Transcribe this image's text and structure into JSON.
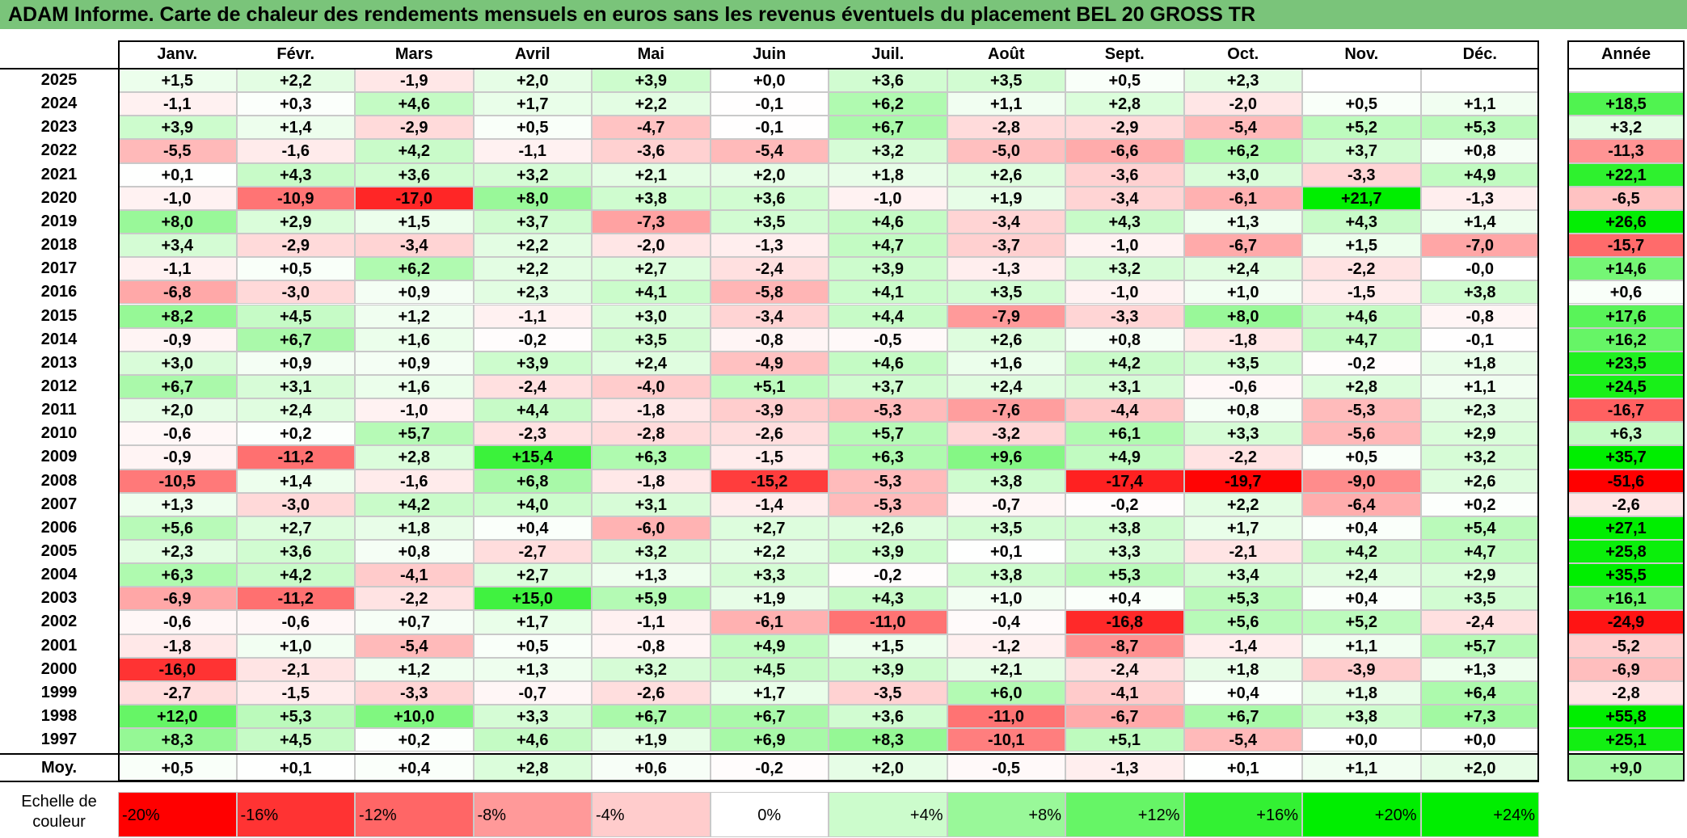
{
  "title": "ADAM Informe. Carte de chaleur des rendements mensuels en euros sans les revenus éventuels du placement BEL 20 GROSS TR",
  "chart_data": {
    "type": "heatmap",
    "title": "ADAM Informe. Carte de chaleur des rendements mensuels en euros sans les revenus éventuels du placement BEL 20 GROSS TR",
    "columns": [
      "Janv.",
      "Févr.",
      "Mars",
      "Avril",
      "Mai",
      "Juin",
      "Juil.",
      "Août",
      "Sept.",
      "Oct.",
      "Nov.",
      "Déc."
    ],
    "year_column": "Année",
    "rows": [
      {
        "year": "2025",
        "values": [
          "+1,5",
          "+2,2",
          "-1,9",
          "+2,0",
          "+3,9",
          "+0,0",
          "+3,6",
          "+3,5",
          "+0,5",
          "+2,3",
          "",
          ""
        ],
        "annual": ""
      },
      {
        "year": "2024",
        "values": [
          "-1,1",
          "+0,3",
          "+4,6",
          "+1,7",
          "+2,2",
          "-0,1",
          "+6,2",
          "+1,1",
          "+2,8",
          "-2,0",
          "+0,5",
          "+1,1"
        ],
        "annual": "+18,5"
      },
      {
        "year": "2023",
        "values": [
          "+3,9",
          "+1,4",
          "-2,9",
          "+0,5",
          "-4,7",
          "-0,1",
          "+6,7",
          "-2,8",
          "-2,9",
          "-5,4",
          "+5,2",
          "+5,3"
        ],
        "annual": "+3,2"
      },
      {
        "year": "2022",
        "values": [
          "-5,5",
          "-1,6",
          "+4,2",
          "-1,1",
          "-3,6",
          "-5,4",
          "+3,2",
          "-5,0",
          "-6,6",
          "+6,2",
          "+3,7",
          "+0,8"
        ],
        "annual": "-11,3"
      },
      {
        "year": "2021",
        "values": [
          "+0,1",
          "+4,3",
          "+3,6",
          "+3,2",
          "+2,1",
          "+2,0",
          "+1,8",
          "+2,6",
          "-3,6",
          "+3,0",
          "-3,3",
          "+4,9"
        ],
        "annual": "+22,1"
      },
      {
        "year": "2020",
        "values": [
          "-1,0",
          "-10,9",
          "-17,0",
          "+8,0",
          "+3,8",
          "+3,6",
          "-1,0",
          "+1,9",
          "-3,4",
          "-6,1",
          "+21,7",
          "-1,3"
        ],
        "annual": "-6,5"
      },
      {
        "year": "2019",
        "values": [
          "+8,0",
          "+2,9",
          "+1,5",
          "+3,7",
          "-7,3",
          "+3,5",
          "+4,6",
          "-3,4",
          "+4,3",
          "+1,3",
          "+4,3",
          "+1,4"
        ],
        "annual": "+26,6"
      },
      {
        "year": "2018",
        "values": [
          "+3,4",
          "-2,9",
          "-3,4",
          "+2,2",
          "-2,0",
          "-1,3",
          "+4,7",
          "-3,7",
          "-1,0",
          "-6,7",
          "+1,5",
          "-7,0"
        ],
        "annual": "-15,7"
      },
      {
        "year": "2017",
        "values": [
          "-1,1",
          "+0,5",
          "+6,2",
          "+2,2",
          "+2,7",
          "-2,4",
          "+3,9",
          "-1,3",
          "+3,2",
          "+2,4",
          "-2,2",
          "-0,0"
        ],
        "annual": "+14,6"
      },
      {
        "year": "2016",
        "values": [
          "-6,8",
          "-3,0",
          "+0,9",
          "+2,3",
          "+4,1",
          "-5,8",
          "+4,1",
          "+3,5",
          "-1,0",
          "+1,0",
          "-1,5",
          "+3,8"
        ],
        "annual": "+0,6"
      },
      {
        "year": "2015",
        "values": [
          "+8,2",
          "+4,5",
          "+1,2",
          "-1,1",
          "+3,0",
          "-3,4",
          "+4,4",
          "-7,9",
          "-3,3",
          "+8,0",
          "+4,6",
          "-0,8"
        ],
        "annual": "+17,6"
      },
      {
        "year": "2014",
        "values": [
          "-0,9",
          "+6,7",
          "+1,6",
          "-0,2",
          "+3,5",
          "-0,8",
          "-0,5",
          "+2,6",
          "+0,8",
          "-1,8",
          "+4,7",
          "-0,1"
        ],
        "annual": "+16,2"
      },
      {
        "year": "2013",
        "values": [
          "+3,0",
          "+0,9",
          "+0,9",
          "+3,9",
          "+2,4",
          "-4,9",
          "+4,6",
          "+1,6",
          "+4,2",
          "+3,5",
          "-0,2",
          "+1,8"
        ],
        "annual": "+23,5"
      },
      {
        "year": "2012",
        "values": [
          "+6,7",
          "+3,1",
          "+1,6",
          "-2,4",
          "-4,0",
          "+5,1",
          "+3,7",
          "+2,4",
          "+3,1",
          "-0,6",
          "+2,8",
          "+1,1"
        ],
        "annual": "+24,5"
      },
      {
        "year": "2011",
        "values": [
          "+2,0",
          "+2,4",
          "-1,0",
          "+4,4",
          "-1,8",
          "-3,9",
          "-5,3",
          "-7,6",
          "-4,4",
          "+0,8",
          "-5,3",
          "+2,3"
        ],
        "annual": "-16,7"
      },
      {
        "year": "2010",
        "values": [
          "-0,6",
          "+0,2",
          "+5,7",
          "-2,3",
          "-2,8",
          "-2,6",
          "+5,7",
          "-3,2",
          "+6,1",
          "+3,3",
          "-5,6",
          "+2,9"
        ],
        "annual": "+6,3"
      },
      {
        "year": "2009",
        "values": [
          "-0,9",
          "-11,2",
          "+2,8",
          "+15,4",
          "+6,3",
          "-1,5",
          "+6,3",
          "+9,6",
          "+4,9",
          "-2,2",
          "+0,5",
          "+3,2"
        ],
        "annual": "+35,7"
      },
      {
        "year": "2008",
        "values": [
          "-10,5",
          "+1,4",
          "-1,6",
          "+6,8",
          "-1,8",
          "-15,2",
          "-5,3",
          "+3,8",
          "-17,4",
          "-19,7",
          "-9,0",
          "+2,6"
        ],
        "annual": "-51,6"
      },
      {
        "year": "2007",
        "values": [
          "+1,3",
          "-3,0",
          "+4,2",
          "+4,0",
          "+3,1",
          "-1,4",
          "-5,3",
          "-0,7",
          "-0,2",
          "+2,2",
          "-6,4",
          "+0,2"
        ],
        "annual": "-2,6"
      },
      {
        "year": "2006",
        "values": [
          "+5,6",
          "+2,7",
          "+1,8",
          "+0,4",
          "-6,0",
          "+2,7",
          "+2,6",
          "+3,5",
          "+3,8",
          "+1,7",
          "+0,4",
          "+5,4"
        ],
        "annual": "+27,1"
      },
      {
        "year": "2005",
        "values": [
          "+2,3",
          "+3,6",
          "+0,8",
          "-2,7",
          "+3,2",
          "+2,2",
          "+3,9",
          "+0,1",
          "+3,3",
          "-2,1",
          "+4,2",
          "+4,7"
        ],
        "annual": "+25,8"
      },
      {
        "year": "2004",
        "values": [
          "+6,3",
          "+4,2",
          "-4,1",
          "+2,7",
          "+1,3",
          "+3,3",
          "-0,2",
          "+3,8",
          "+5,3",
          "+3,4",
          "+2,4",
          "+2,9"
        ],
        "annual": "+35,5"
      },
      {
        "year": "2003",
        "values": [
          "-6,9",
          "-11,2",
          "-2,2",
          "+15,0",
          "+5,9",
          "+1,9",
          "+4,3",
          "+1,0",
          "+0,4",
          "+5,3",
          "+0,4",
          "+3,5"
        ],
        "annual": "+16,1"
      },
      {
        "year": "2002",
        "values": [
          "-0,6",
          "-0,6",
          "+0,7",
          "+1,7",
          "-1,1",
          "-6,1",
          "-11,0",
          "-0,4",
          "-16,8",
          "+5,6",
          "+5,2",
          "-2,4"
        ],
        "annual": "-24,9"
      },
      {
        "year": "2001",
        "values": [
          "-1,8",
          "+1,0",
          "-5,4",
          "+0,5",
          "-0,8",
          "+4,9",
          "+1,5",
          "-1,2",
          "-8,7",
          "-1,4",
          "+1,1",
          "+5,7"
        ],
        "annual": "-5,2"
      },
      {
        "year": "2000",
        "values": [
          "-16,0",
          "-2,1",
          "+1,2",
          "+1,3",
          "+3,2",
          "+4,5",
          "+3,9",
          "+2,1",
          "-2,4",
          "+1,8",
          "-3,9",
          "+1,3"
        ],
        "annual": "-6,9"
      },
      {
        "year": "1999",
        "values": [
          "-2,7",
          "-1,5",
          "-3,3",
          "-0,7",
          "-2,6",
          "+1,7",
          "-3,5",
          "+6,0",
          "-4,1",
          "+0,4",
          "+1,8",
          "+6,4"
        ],
        "annual": "-2,8"
      },
      {
        "year": "1998",
        "values": [
          "+12,0",
          "+5,3",
          "+10,0",
          "+3,3",
          "+6,7",
          "+6,7",
          "+3,6",
          "-11,0",
          "-6,7",
          "+6,7",
          "+3,8",
          "+7,3"
        ],
        "annual": "+55,8"
      },
      {
        "year": "1997",
        "values": [
          "+8,3",
          "+4,5",
          "+0,2",
          "+4,6",
          "+1,9",
          "+6,9",
          "+8,3",
          "-10,1",
          "+5,1",
          "-5,4",
          "+0,0",
          "+0,0"
        ],
        "annual": "+25,1"
      }
    ],
    "average": {
      "label": "Moy.",
      "values": [
        "+0,5",
        "+0,1",
        "+0,4",
        "+2,8",
        "+0,6",
        "-0,2",
        "+2,0",
        "-0,5",
        "-1,3",
        "+0,1",
        "+1,1",
        "+2,0"
      ],
      "annual": "+9,0"
    },
    "legend": {
      "label": "Echelle de couleur",
      "steps": [
        "-20%",
        "-16%",
        "-12%",
        "-8%",
        "-4%",
        "0%",
        "+4%",
        "+8%",
        "+12%",
        "+16%",
        "+20%",
        "+24%"
      ]
    },
    "colors": {
      "negative_max": "#ff0000",
      "neutral": "#ffffff",
      "positive_max": "#00ee00",
      "title_bar": "#7ac47a"
    }
  }
}
